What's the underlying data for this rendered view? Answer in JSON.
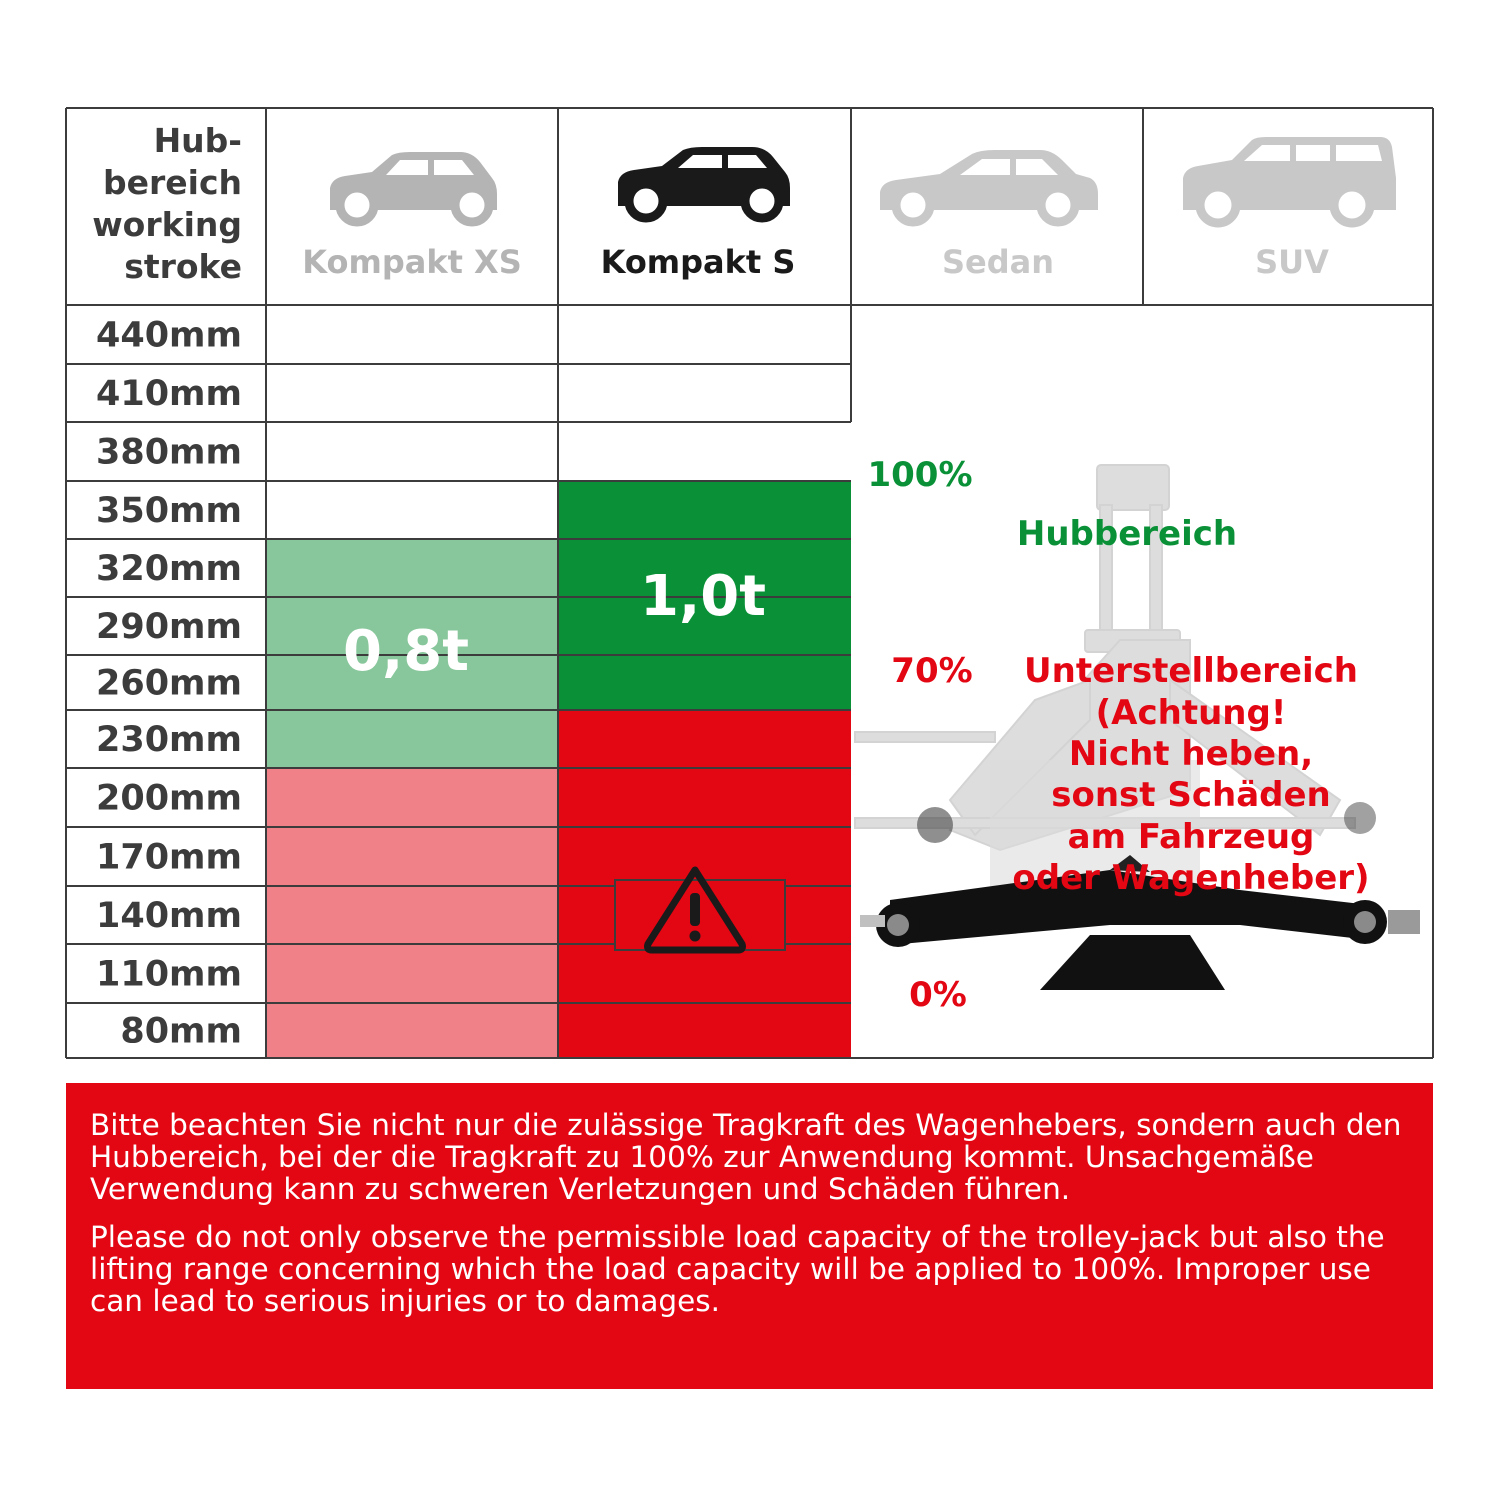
{
  "header": {
    "stroke_label_lines": [
      "Hub-",
      "bereich",
      "working",
      "stroke"
    ]
  },
  "columns": [
    {
      "label": "Kompakt XS",
      "label_color": "#b4b4b4",
      "icon": "hatchback-car-icon",
      "car_color": "#b4b4b4"
    },
    {
      "label": "Kompakt S",
      "label_color": "#1a1a1a",
      "icon": "hatchback-car-icon",
      "car_color": "#1a1a1a"
    },
    {
      "label": "Sedan",
      "label_color": "#c8c8c8",
      "icon": "sedan-car-icon",
      "car_color": "#c8c8c8"
    },
    {
      "label": "SUV",
      "label_color": "#c8c8c8",
      "icon": "suv-car-icon",
      "car_color": "#c8c8c8"
    }
  ],
  "rows": [
    "440mm",
    "410mm",
    "380mm",
    "350mm",
    "320mm",
    "290mm",
    "260mm",
    "230mm",
    "200mm",
    "170mm",
    "140mm",
    "110mm",
    "80mm"
  ],
  "bands": {
    "kompakt_xs": {
      "load_label": "0,8t",
      "lift_zone": {
        "from_mm": 230,
        "to_mm": 320,
        "color": "#88c79b"
      },
      "support_zone": {
        "from_mm": 80,
        "to_mm": 200,
        "color": "#f08189"
      }
    },
    "kompakt_s": {
      "load_label": "1,0t",
      "lift_zone": {
        "from_mm": 260,
        "to_mm": 350,
        "color": "#0a9138"
      },
      "support_zone": {
        "from_mm": 80,
        "to_mm": 230,
        "color": "#e30613"
      },
      "warning_icon": "warning-triangle-icon"
    }
  },
  "jack_legend": {
    "image_icon": "scissor-jack-icon",
    "pct_100": "100%",
    "pct_70": "70%",
    "pct_0": "0%",
    "lift_zone_label": "Hubbereich",
    "support_zone_lines": [
      "Unterstellbereich",
      "(Achtung!",
      "Nicht heben,",
      "sonst Schäden",
      "am Fahrzeug",
      "oder Wagenheber)"
    ],
    "green": "#0a9138",
    "red": "#e30613"
  },
  "notice": {
    "background": "#e30613",
    "de_text": "Bitte beachten Sie nicht nur die zulässige Tragkraft des Wagenhebers, sondern auch den Hubbereich, bei der die Tragkraft zu 100% zur Anwendung kommt. Unsachgemäße Verwendung kann zu schweren Verletzungen und Schäden führen.",
    "en_text": "Please do not only observe the permissible load capacity of the trolley-jack but also the lifting range concerning which the load capacity will be applied to 100%. Improper use can lead to serious injuries or to damages."
  }
}
